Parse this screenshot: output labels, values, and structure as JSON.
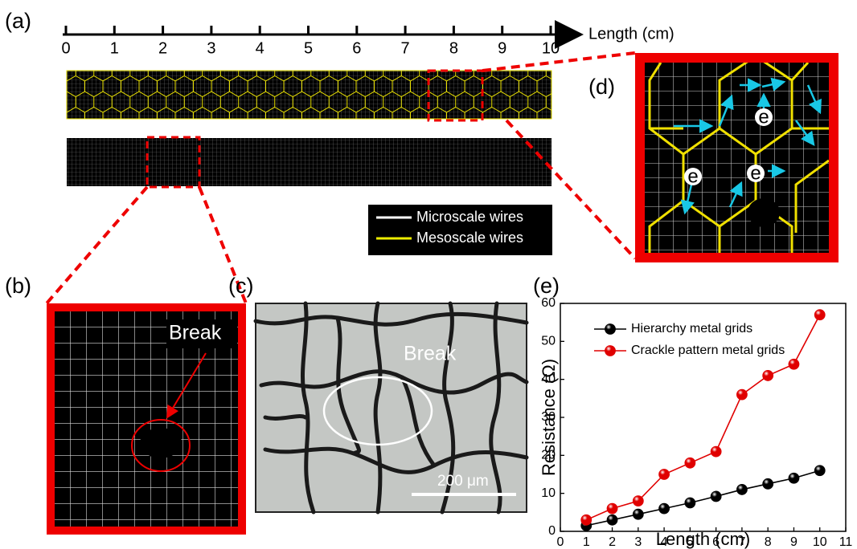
{
  "panel_labels": [
    "(a)",
    "(b)",
    "(c)",
    "(d)",
    "(e)"
  ],
  "ruler": {
    "ticks": [
      0,
      1,
      2,
      3,
      4,
      5,
      6,
      7,
      8,
      9,
      10
    ],
    "label": "Length (cm)"
  },
  "legend_a": [
    "Microscale wires",
    "Mesoscale wires"
  ],
  "panel_b": {
    "label": "Break"
  },
  "panel_c": {
    "label": "Break",
    "scale_bar": "200 μm"
  },
  "panel_d": {
    "electrons": [
      "e",
      "e",
      "e"
    ]
  },
  "chart_data": {
    "type": "line",
    "x_label": "Length (cm)",
    "y_label": "Resistance (Ω)",
    "x": [
      1,
      2,
      3,
      4,
      5,
      6,
      7,
      8,
      9,
      10
    ],
    "series": [
      {
        "name": "Hierarchy metal grids",
        "color": "#000000",
        "values": [
          1.5,
          3,
          4.5,
          6,
          7.5,
          9.2,
          11,
          12.5,
          14,
          16
        ]
      },
      {
        "name": "Crackle pattern metal grids",
        "color": "#e00000",
        "values": [
          3,
          6,
          8,
          15,
          18,
          21,
          36,
          41,
          44,
          57
        ]
      }
    ],
    "xlim": [
      0,
      11
    ],
    "xticks": [
      0,
      1,
      2,
      3,
      4,
      5,
      6,
      7,
      8,
      9,
      10,
      11
    ],
    "ylim": [
      0,
      60
    ],
    "yticks": [
      0,
      10,
      20,
      30,
      40,
      50,
      60
    ],
    "legend": "upper left",
    "grid": false
  }
}
